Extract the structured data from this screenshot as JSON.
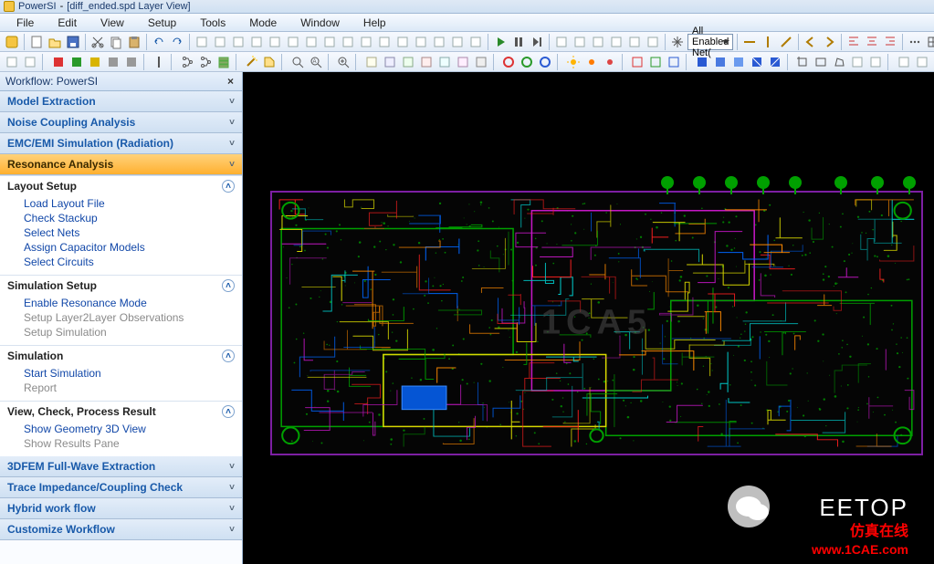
{
  "title": {
    "app": "PowerSI",
    "doc": "[diff_ended.spd Layer View]"
  },
  "menu": [
    "File",
    "Edit",
    "View",
    "Setup",
    "Tools",
    "Mode",
    "Window",
    "Help"
  ],
  "net_dropdown": "All Enabled Net(",
  "workflow": {
    "header": "Workflow: PowerSI",
    "items": [
      "Model Extraction",
      "Noise Coupling Analysis",
      "EMC/EMI Simulation (Radiation)",
      "Resonance Analysis",
      "3DFEM Full-Wave Extraction",
      "Trace Impedance/Coupling Check",
      "Hybrid work flow",
      "Customize Workflow"
    ],
    "active_index": 3,
    "sections": [
      {
        "title": "Layout Setup",
        "links": [
          {
            "t": "Load Layout File",
            "d": false
          },
          {
            "t": "Check Stackup",
            "d": false
          },
          {
            "t": "Select Nets",
            "d": false
          },
          {
            "t": "Assign Capacitor Models",
            "d": false
          },
          {
            "t": "Select Circuits",
            "d": false
          }
        ]
      },
      {
        "title": "Simulation Setup",
        "links": [
          {
            "t": "Enable Resonance Mode",
            "d": false
          },
          {
            "t": "Setup Layer2Layer Observations",
            "d": true
          },
          {
            "t": "Setup Simulation",
            "d": true
          }
        ]
      },
      {
        "title": "Simulation",
        "links": [
          {
            "t": "Start Simulation",
            "d": false
          },
          {
            "t": "Report",
            "d": true
          }
        ]
      },
      {
        "title": "View, Check, Process Result",
        "links": [
          {
            "t": "Show Geometry 3D View",
            "d": false
          },
          {
            "t": "Show Results Pane",
            "d": true
          }
        ]
      }
    ]
  },
  "watermarks": {
    "center": "1CA5",
    "brand": "EETOP",
    "cn": "仿真在线",
    "url": "www.1CAE.com"
  },
  "colors": {
    "pcb_outline": "#7d1fa3",
    "copper1": "#00a000",
    "copper2": "#c517c5",
    "copper3": "#d8d800",
    "copper4": "#ff8a00",
    "copper5": "#0066ff",
    "copper6": "#ff2020",
    "via": "#009800"
  },
  "toolbar_icons_row1": [
    "app",
    "sep",
    "new",
    "open",
    "save",
    "sep",
    "cut",
    "copy",
    "paste",
    "sep",
    "undo",
    "redo",
    "sep",
    "sq",
    "sq",
    "sq",
    "sq",
    "sq",
    "sq",
    "sq",
    "sq",
    "sq",
    "sq",
    "sq",
    "sq",
    "sq",
    "sq",
    "sq",
    "sq",
    "sep",
    "play",
    "pause",
    "next",
    "sep",
    "sq",
    "sq",
    "sq",
    "sq",
    "sq",
    "sq",
    "sep",
    "pan",
    "netdrop",
    "sep",
    "line-h",
    "line-v",
    "diag",
    "sep",
    "arr-l",
    "arr-r",
    "sep",
    "align-l",
    "align-c",
    "align-r",
    "sep",
    "dots",
    "grid",
    "off",
    "sq",
    "sep",
    "sq",
    "cursor",
    "sq"
  ],
  "toolbar_icons_row2": [
    "sq",
    "sq",
    "sep",
    "red",
    "grn",
    "ylw",
    "gry",
    "gry",
    "sep",
    "vbar",
    "sep",
    "tree",
    "tree",
    "stack",
    "sep",
    "wand",
    "tag",
    "sep",
    "srch",
    "zoomA",
    "sep",
    "zoom",
    "sep",
    "t1",
    "t2",
    "t3",
    "t4",
    "t5",
    "t6",
    "t7",
    "sep",
    "c-r",
    "c-g",
    "c-b",
    "sep",
    "sun1",
    "sun2",
    "sun3",
    "sep",
    "bx1",
    "bx2",
    "bx3",
    "sep",
    "bl1",
    "bl2",
    "bl3",
    "bl4",
    "bl5",
    "sep",
    "crop",
    "rect",
    "poly",
    "sq",
    "sq",
    "sep",
    "sq",
    "sq"
  ]
}
